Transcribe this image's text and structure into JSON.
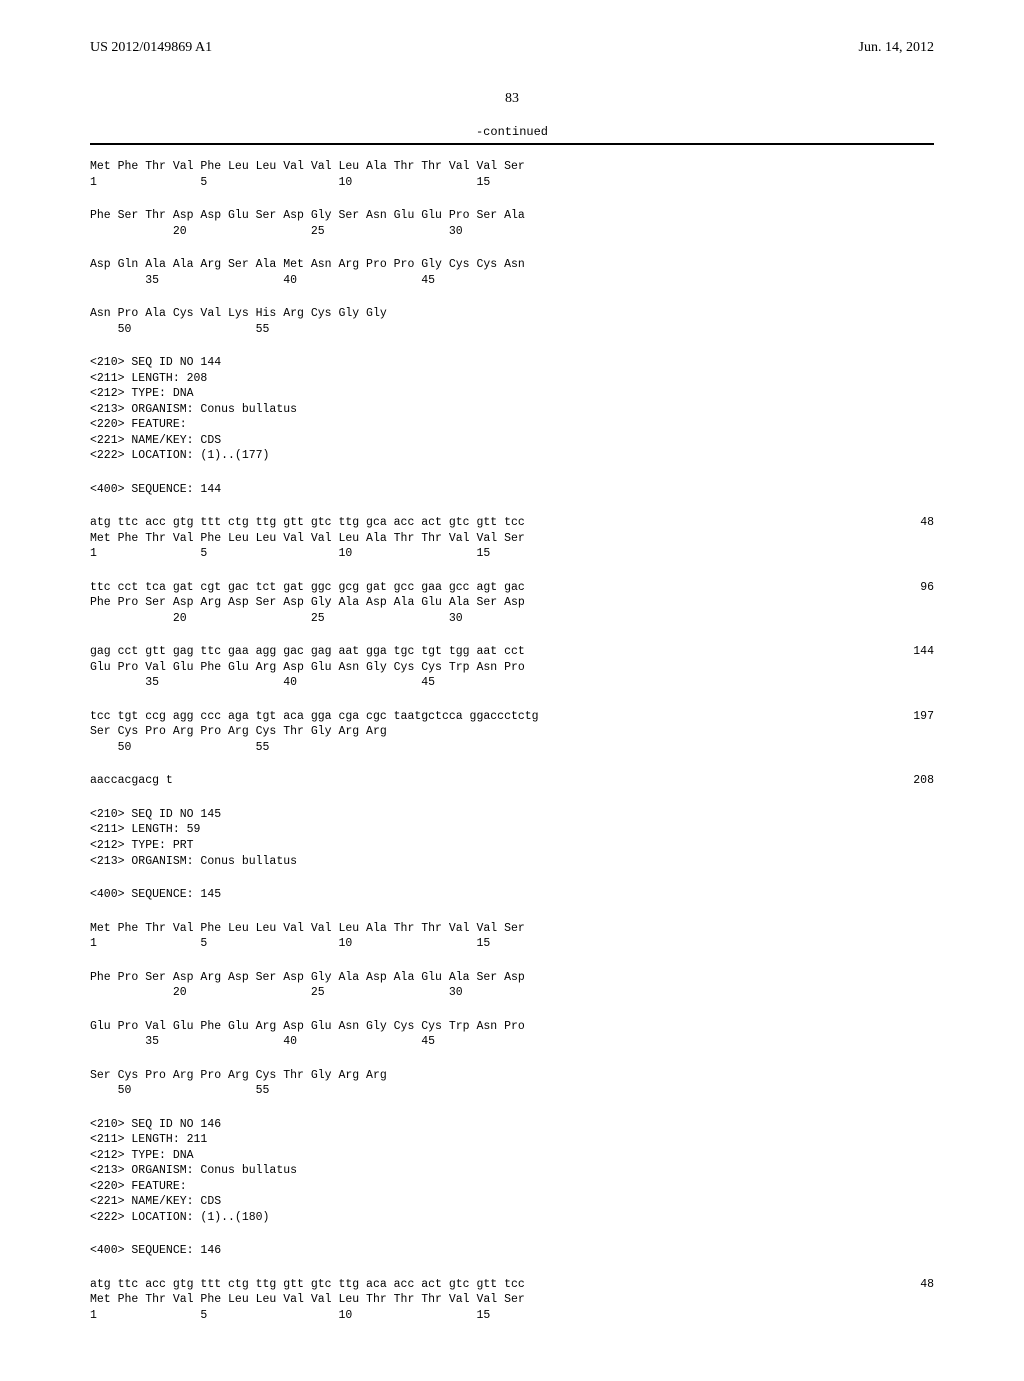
{
  "header": {
    "pub_number": "US 2012/0149869 A1",
    "pub_date": "Jun. 14, 2012"
  },
  "page_number": "83",
  "continued_label": "-continued",
  "blocks": [
    {
      "lines": [
        {
          "text": "Met Phe Thr Val Phe Leu Leu Val Val Leu Ala Thr Thr Val Val Ser",
          "num": ""
        },
        {
          "text": "1               5                   10                  15",
          "num": ""
        }
      ]
    },
    {
      "lines": [
        {
          "text": "Phe Ser Thr Asp Asp Glu Ser Asp Gly Ser Asn Glu Glu Pro Ser Ala",
          "num": ""
        },
        {
          "text": "            20                  25                  30",
          "num": ""
        }
      ]
    },
    {
      "lines": [
        {
          "text": "Asp Gln Ala Ala Arg Ser Ala Met Asn Arg Pro Pro Gly Cys Cys Asn",
          "num": ""
        },
        {
          "text": "        35                  40                  45",
          "num": ""
        }
      ]
    },
    {
      "lines": [
        {
          "text": "Asn Pro Ala Cys Val Lys His Arg Cys Gly Gly",
          "num": ""
        },
        {
          "text": "    50                  55",
          "num": ""
        }
      ]
    },
    {
      "lines": [
        {
          "text": "<210> SEQ ID NO 144",
          "num": ""
        },
        {
          "text": "<211> LENGTH: 208",
          "num": ""
        },
        {
          "text": "<212> TYPE: DNA",
          "num": ""
        },
        {
          "text": "<213> ORGANISM: Conus bullatus",
          "num": ""
        },
        {
          "text": "<220> FEATURE:",
          "num": ""
        },
        {
          "text": "<221> NAME/KEY: CDS",
          "num": ""
        },
        {
          "text": "<222> LOCATION: (1)..(177)",
          "num": ""
        }
      ]
    },
    {
      "lines": [
        {
          "text": "<400> SEQUENCE: 144",
          "num": ""
        }
      ]
    },
    {
      "lines": [
        {
          "text": "atg ttc acc gtg ttt ctg ttg gtt gtc ttg gca acc act gtc gtt tcc",
          "num": "48"
        },
        {
          "text": "Met Phe Thr Val Phe Leu Leu Val Val Leu Ala Thr Thr Val Val Ser",
          "num": ""
        },
        {
          "text": "1               5                   10                  15",
          "num": ""
        }
      ]
    },
    {
      "lines": [
        {
          "text": "ttc cct tca gat cgt gac tct gat ggc gcg gat gcc gaa gcc agt gac",
          "num": "96"
        },
        {
          "text": "Phe Pro Ser Asp Arg Asp Ser Asp Gly Ala Asp Ala Glu Ala Ser Asp",
          "num": ""
        },
        {
          "text": "            20                  25                  30",
          "num": ""
        }
      ]
    },
    {
      "lines": [
        {
          "text": "gag cct gtt gag ttc gaa agg gac gag aat gga tgc tgt tgg aat cct",
          "num": "144"
        },
        {
          "text": "Glu Pro Val Glu Phe Glu Arg Asp Glu Asn Gly Cys Cys Trp Asn Pro",
          "num": ""
        },
        {
          "text": "        35                  40                  45",
          "num": ""
        }
      ]
    },
    {
      "lines": [
        {
          "text": "tcc tgt ccg agg ccc aga tgt aca gga cga cgc taatgctcca ggaccctctg",
          "num": "197"
        },
        {
          "text": "Ser Cys Pro Arg Pro Arg Cys Thr Gly Arg Arg",
          "num": ""
        },
        {
          "text": "    50                  55",
          "num": ""
        }
      ]
    },
    {
      "lines": [
        {
          "text": "aaccacgacg t",
          "num": "208"
        }
      ]
    },
    {
      "lines": [
        {
          "text": "<210> SEQ ID NO 145",
          "num": ""
        },
        {
          "text": "<211> LENGTH: 59",
          "num": ""
        },
        {
          "text": "<212> TYPE: PRT",
          "num": ""
        },
        {
          "text": "<213> ORGANISM: Conus bullatus",
          "num": ""
        }
      ]
    },
    {
      "lines": [
        {
          "text": "<400> SEQUENCE: 145",
          "num": ""
        }
      ]
    },
    {
      "lines": [
        {
          "text": "Met Phe Thr Val Phe Leu Leu Val Val Leu Ala Thr Thr Val Val Ser",
          "num": ""
        },
        {
          "text": "1               5                   10                  15",
          "num": ""
        }
      ]
    },
    {
      "lines": [
        {
          "text": "Phe Pro Ser Asp Arg Asp Ser Asp Gly Ala Asp Ala Glu Ala Ser Asp",
          "num": ""
        },
        {
          "text": "            20                  25                  30",
          "num": ""
        }
      ]
    },
    {
      "lines": [
        {
          "text": "Glu Pro Val Glu Phe Glu Arg Asp Glu Asn Gly Cys Cys Trp Asn Pro",
          "num": ""
        },
        {
          "text": "        35                  40                  45",
          "num": ""
        }
      ]
    },
    {
      "lines": [
        {
          "text": "Ser Cys Pro Arg Pro Arg Cys Thr Gly Arg Arg",
          "num": ""
        },
        {
          "text": "    50                  55",
          "num": ""
        }
      ]
    },
    {
      "lines": [
        {
          "text": "<210> SEQ ID NO 146",
          "num": ""
        },
        {
          "text": "<211> LENGTH: 211",
          "num": ""
        },
        {
          "text": "<212> TYPE: DNA",
          "num": ""
        },
        {
          "text": "<213> ORGANISM: Conus bullatus",
          "num": ""
        },
        {
          "text": "<220> FEATURE:",
          "num": ""
        },
        {
          "text": "<221> NAME/KEY: CDS",
          "num": ""
        },
        {
          "text": "<222> LOCATION: (1)..(180)",
          "num": ""
        }
      ]
    },
    {
      "lines": [
        {
          "text": "<400> SEQUENCE: 146",
          "num": ""
        }
      ]
    },
    {
      "lines": [
        {
          "text": "atg ttc acc gtg ttt ctg ttg gtt gtc ttg aca acc act gtc gtt tcc",
          "num": "48"
        },
        {
          "text": "Met Phe Thr Val Phe Leu Leu Val Val Leu Thr Thr Thr Val Val Ser",
          "num": ""
        },
        {
          "text": "1               5                   10                  15",
          "num": ""
        }
      ]
    }
  ]
}
